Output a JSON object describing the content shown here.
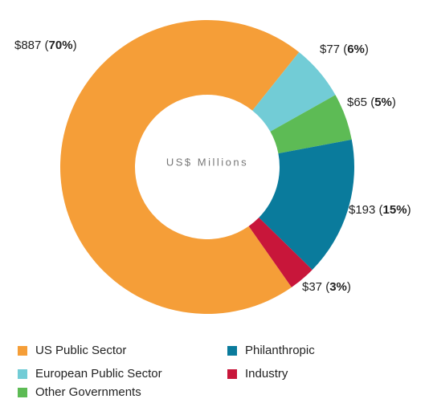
{
  "chart_data": {
    "type": "pie",
    "center_label": "US$ Millions",
    "categories": [
      "US Public Sector",
      "European Public Sector",
      "Other Governments",
      "Philanthropic",
      "Industry"
    ],
    "values": [
      887,
      77,
      65,
      193,
      37
    ],
    "value_labels": [
      "$887",
      "$77",
      "$65",
      "$193",
      "$37"
    ],
    "percentages": [
      70,
      6,
      5,
      15,
      3
    ],
    "percentage_labels": [
      "70%",
      "6%",
      "5%",
      "15%",
      "3%"
    ],
    "colors": [
      "#f59e38",
      "#72ccd6",
      "#5dbb55",
      "#0a7b9c",
      "#c8163a"
    ],
    "legend": "bottom"
  }
}
